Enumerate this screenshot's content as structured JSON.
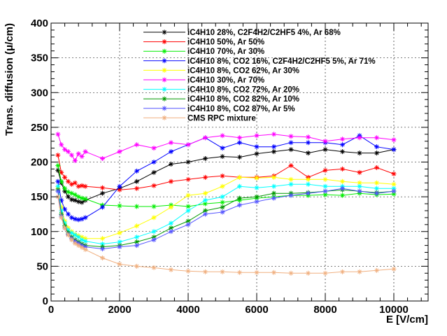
{
  "chart_data": {
    "type": "line",
    "title": "",
    "xlabel": "E [V/cm]",
    "ylabel": "Trans. diffusion (μ/cm)",
    "xlim": [
      0,
      11000
    ],
    "ylim": [
      0,
      400
    ],
    "x_ticks": [
      "0",
      "2000",
      "4000",
      "6000",
      "8000",
      "10000"
    ],
    "y_ticks": [
      "0",
      "50",
      "100",
      "150",
      "200",
      "250",
      "300",
      "350",
      "400"
    ],
    "grid": true,
    "legend_position": "top-right",
    "series": [
      {
        "name": "iC4H10 28%, C2F4H2/C2HF5 4%, Ar 68%",
        "color": "#000000",
        "x": [
          200,
          300,
          400,
          500,
          600,
          700,
          800,
          900,
          1000,
          1500,
          2000,
          2500,
          3000,
          3500,
          4000,
          4500,
          5000,
          5500,
          6000,
          6500,
          7000,
          7500,
          8000,
          8500,
          9000,
          9500,
          10000
        ],
        "y": [
          188,
          170,
          158,
          150,
          146,
          145,
          143,
          142,
          145,
          155,
          162,
          172,
          185,
          197,
          200,
          205,
          208,
          207,
          212,
          215,
          218,
          213,
          218,
          215,
          213,
          213,
          218
        ]
      },
      {
        "name": "iC4H10 50%, Ar 50%",
        "color": "#ff0000",
        "x": [
          200,
          300,
          400,
          500,
          600,
          700,
          800,
          900,
          1000,
          1500,
          2000,
          2500,
          3000,
          3500,
          4000,
          4500,
          5000,
          5500,
          6000,
          6500,
          7000,
          7500,
          8000,
          8500,
          9000,
          9500,
          10000
        ],
        "y": [
          210,
          185,
          178,
          172,
          168,
          170,
          165,
          166,
          165,
          163,
          160,
          162,
          166,
          172,
          175,
          178,
          180,
          178,
          178,
          180,
          195,
          178,
          188,
          190,
          185,
          192,
          183
        ]
      },
      {
        "name": "iC4H10 70%, Ar 30%",
        "color": "#00ee00",
        "x": [
          200,
          300,
          400,
          500,
          600,
          700,
          800,
          900,
          1000,
          1500,
          2000,
          2500,
          3000,
          3500,
          4000,
          4500,
          5000,
          5500,
          6000,
          6500,
          7000,
          7500,
          8000,
          8500,
          9000,
          9500,
          10000
        ],
        "y": [
          195,
          172,
          162,
          157,
          155,
          153,
          150,
          148,
          147,
          138,
          137,
          136,
          136,
          138,
          136,
          140,
          142,
          145,
          148,
          150,
          152,
          152,
          153,
          152,
          155,
          153,
          154
        ]
      },
      {
        "name": "iC4H10 8%, CO2 16%, C2F4H2/C2HF5 5%, Ar 71%",
        "color": "#0000ff",
        "x": [
          200,
          300,
          400,
          500,
          600,
          700,
          800,
          900,
          1000,
          1500,
          2000,
          2500,
          3000,
          3500,
          4000,
          4500,
          5000,
          5500,
          6000,
          6500,
          7000,
          7500,
          8000,
          8500,
          9000,
          9500,
          10000
        ],
        "y": [
          172,
          145,
          132,
          125,
          120,
          118,
          117,
          118,
          120,
          135,
          165,
          187,
          200,
          215,
          225,
          235,
          220,
          228,
          222,
          222,
          228,
          228,
          228,
          225,
          238,
          222,
          218
        ]
      },
      {
        "name": "iC4H10 8%, CO2 62%, Ar 30%",
        "color": "#ffff00",
        "x": [
          200,
          300,
          400,
          500,
          600,
          700,
          800,
          900,
          1000,
          1500,
          2000,
          2500,
          3000,
          3500,
          4000,
          4500,
          5000,
          5500,
          6000,
          6500,
          7000,
          7500,
          8000,
          8500,
          9000,
          9500,
          10000
        ],
        "y": [
          162,
          135,
          115,
          105,
          100,
          96,
          94,
          92,
          90,
          90,
          98,
          108,
          120,
          135,
          152,
          155,
          165,
          178,
          177,
          178,
          175,
          175,
          175,
          172,
          170,
          170,
          168
        ]
      },
      {
        "name": "iC4H10 30%, Ar 70%",
        "color": "#ff00ff",
        "x": [
          200,
          300,
          400,
          500,
          600,
          700,
          800,
          900,
          1000,
          1500,
          2000,
          2500,
          3000,
          3500,
          4000,
          4500,
          5000,
          5500,
          6000,
          6500,
          7000,
          7500,
          8000,
          8500,
          9000,
          9500,
          10000
        ],
        "y": [
          240,
          225,
          218,
          215,
          210,
          202,
          212,
          208,
          215,
          205,
          215,
          225,
          220,
          228,
          225,
          235,
          238,
          235,
          238,
          240,
          237,
          236,
          230,
          233,
          235,
          235,
          232
        ]
      },
      {
        "name": "iC4H10 8%, CO2 72%, Ar 20%",
        "color": "#00ffff",
        "x": [
          200,
          300,
          400,
          500,
          600,
          700,
          800,
          900,
          1000,
          1500,
          2000,
          2500,
          3000,
          3500,
          4000,
          4500,
          5000,
          5500,
          6000,
          6500,
          7000,
          7500,
          8000,
          8500,
          9000,
          9500,
          10000
        ],
        "y": [
          165,
          130,
          112,
          102,
          98,
          95,
          92,
          88,
          86,
          82,
          85,
          92,
          100,
          112,
          130,
          145,
          150,
          165,
          163,
          165,
          168,
          168,
          165,
          165,
          165,
          162,
          162
        ]
      },
      {
        "name": "iC4H10 8%, CO2 82%, Ar 10%",
        "color": "#009900",
        "x": [
          200,
          300,
          400,
          500,
          600,
          700,
          800,
          900,
          1000,
          1500,
          2000,
          2500,
          3000,
          3500,
          4000,
          4500,
          5000,
          5500,
          6000,
          6500,
          7000,
          7500,
          8000,
          8500,
          9000,
          9500,
          10000
        ],
        "y": [
          160,
          125,
          108,
          98,
          92,
          88,
          85,
          82,
          80,
          78,
          80,
          85,
          92,
          105,
          115,
          130,
          135,
          148,
          150,
          155,
          155,
          156,
          158,
          160,
          158,
          156,
          158
        ]
      },
      {
        "name": "iC4H10 8%, CO2 87%, Ar 5%",
        "color": "#5555ff",
        "x": [
          200,
          300,
          400,
          500,
          600,
          700,
          800,
          900,
          1000,
          1500,
          2000,
          2500,
          3000,
          3500,
          4000,
          4500,
          5000,
          5500,
          6000,
          6500,
          7000,
          7500,
          8000,
          8500,
          9000,
          9500,
          10000
        ],
        "y": [
          158,
          122,
          105,
          96,
          90,
          86,
          83,
          80,
          78,
          75,
          78,
          80,
          88,
          100,
          110,
          125,
          128,
          138,
          143,
          148,
          152,
          155,
          158,
          162,
          158,
          155,
          158
        ]
      },
      {
        "name": "CMS RPC mixture",
        "color": "#f0b080",
        "x": [
          200,
          300,
          400,
          500,
          600,
          700,
          800,
          900,
          1000,
          1500,
          2000,
          2500,
          3000,
          3500,
          4000,
          4500,
          5000,
          5500,
          6000,
          6500,
          7000,
          7500,
          8000,
          8500,
          9000,
          9500,
          10000
        ],
        "y": [
          150,
          120,
          105,
          95,
          88,
          83,
          80,
          77,
          74,
          62,
          53,
          50,
          48,
          45,
          43,
          42,
          42,
          41,
          41,
          41,
          40,
          40,
          40,
          42,
          42,
          44,
          46
        ]
      }
    ]
  }
}
